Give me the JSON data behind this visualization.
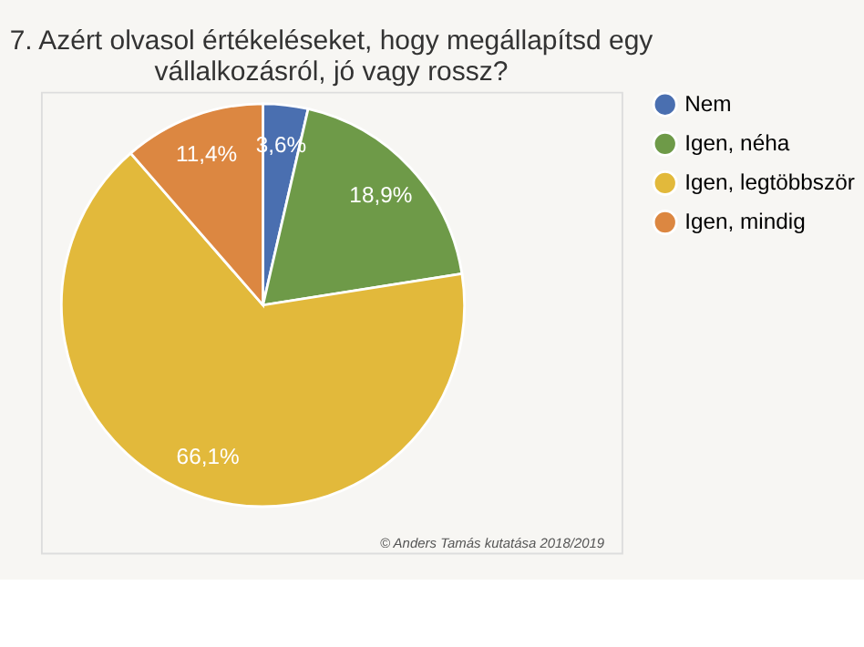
{
  "chart_data": {
    "type": "pie",
    "title": [
      "7. Azért olvasol értékeléseket, hogy megállapítsd egy",
      "vállalkozásról, jó vagy rossz?"
    ],
    "categories": [
      "Nem",
      "Igen, néha",
      "Igen, legtöbbször",
      "Igen, mindig"
    ],
    "values": [
      3.6,
      18.9,
      66.1,
      11.4
    ],
    "colors": [
      "#4a6fb0",
      "#6e9a48",
      "#e2b93b",
      "#dc8741"
    ],
    "value_labels": [
      "3,6%",
      "18,9%",
      "66,1%",
      "11,4%"
    ],
    "legend": "right",
    "annotations": [
      "© Anders Tamás kutatása 2018/2019"
    ]
  }
}
